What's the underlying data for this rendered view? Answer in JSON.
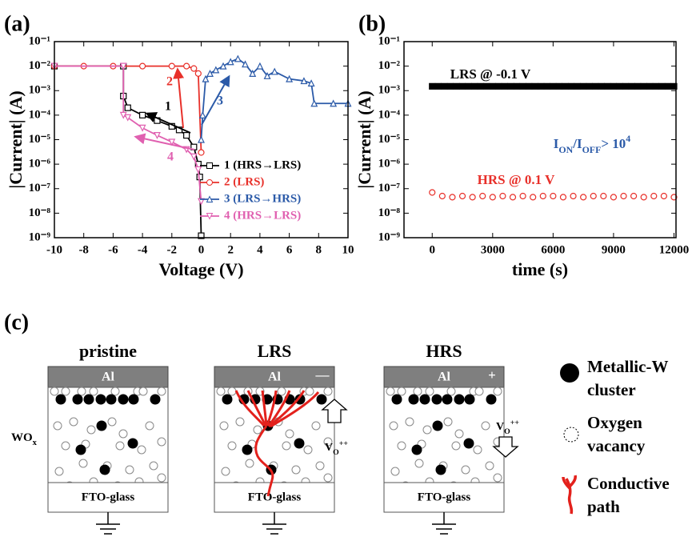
{
  "chart_data": [
    {
      "type": "line",
      "label": "(a)",
      "xlabel": "Voltage (V)",
      "ylabel": "|Current| (A)",
      "xlim": [
        -10,
        10
      ],
      "xticks": [
        -10,
        -8,
        -6,
        -4,
        -2,
        0,
        2,
        4,
        6,
        8,
        10
      ],
      "ylim": [
        1e-09,
        0.1
      ],
      "yscale": "log",
      "yticks": [
        {
          "value": 0.1,
          "label": "10⁻¹"
        },
        {
          "value": 0.01,
          "label": "10⁻²"
        },
        {
          "value": 0.001,
          "label": "10⁻³"
        },
        {
          "value": 0.0001,
          "label": "10⁻⁴"
        },
        {
          "value": 1e-05,
          "label": "10⁻⁵"
        },
        {
          "value": 1e-06,
          "label": "10⁻⁶"
        },
        {
          "value": 1e-07,
          "label": "10⁻⁷"
        },
        {
          "value": 1e-08,
          "label": "10⁻⁸"
        },
        {
          "value": 1e-09,
          "label": "10⁻⁹"
        }
      ],
      "legend": "lower right",
      "series": [
        {
          "name": "1 (HRS→LRS)",
          "color": "#000000",
          "marker": "square",
          "x": [
            0,
            -0.1,
            -0.2,
            -0.5,
            -1,
            -1.5,
            -2,
            -3,
            -4,
            -5,
            -5.3,
            -5.3,
            -10
          ],
          "values": [
            1.2e-09,
            3e-07,
            1e-06,
            5e-06,
            1.5e-05,
            2.5e-05,
            3.5e-05,
            6e-05,
            0.0001,
            0.0002,
            0.0006,
            0.01,
            0.01
          ]
        },
        {
          "name": "2 (LRS)",
          "color": "#e8302a",
          "marker": "circle",
          "x": [
            -10,
            -8,
            -6,
            -4,
            -2,
            -1,
            -0.5,
            -0.2,
            0
          ],
          "values": [
            0.01,
            0.01,
            0.01,
            0.01,
            0.01,
            0.01,
            0.008,
            0.005,
            3e-06
          ]
        },
        {
          "name": "3 (LRS→HRS)",
          "color": "#2b5aa8",
          "marker": "triangle-up",
          "x": [
            0,
            0.1,
            0.3,
            0.6,
            1,
            1.5,
            2,
            2.5,
            3,
            3.5,
            4,
            4.5,
            5,
            6,
            7,
            7.5,
            7.7,
            9,
            10
          ],
          "values": [
            1e-05,
            0.0001,
            0.003,
            0.005,
            0.007,
            0.01,
            0.015,
            0.02,
            0.012,
            0.005,
            0.01,
            0.004,
            0.006,
            0.003,
            0.0025,
            0.002,
            0.0003,
            0.0003,
            0.0003
          ]
        },
        {
          "name": "4 (HRS→LRS)",
          "color": "#e060b0",
          "marker": "triangle-down",
          "x": [
            0,
            -0.2,
            -0.5,
            -1,
            -2,
            -3,
            -4,
            -5,
            -5.3,
            -5.3,
            -10
          ],
          "values": [
            3e-08,
            6e-07,
            2e-06,
            4e-06,
            8e-06,
            1.5e-05,
            3e-05,
            8e-05,
            0.0001,
            0.01,
            0.01
          ]
        }
      ],
      "annotations": [
        {
          "text": "1",
          "color": "#000000"
        },
        {
          "text": "2",
          "color": "#e8302a"
        },
        {
          "text": "3",
          "color": "#2b5aa8"
        },
        {
          "text": "4",
          "color": "#e060b0"
        }
      ]
    },
    {
      "type": "scatter",
      "label": "(b)",
      "xlabel": "time (s)",
      "ylabel": "|Current| (A)",
      "xlim": [
        -1400,
        12100
      ],
      "xticks": [
        0,
        3000,
        6000,
        9000,
        12000
      ],
      "ylim": [
        1e-09,
        0.1
      ],
      "yscale": "log",
      "yticks": [
        {
          "value": 0.1,
          "label": "10⁻¹"
        },
        {
          "value": 0.01,
          "label": "10⁻²"
        },
        {
          "value": 0.001,
          "label": "10⁻³"
        },
        {
          "value": 0.0001,
          "label": "10⁻⁴"
        },
        {
          "value": 1e-05,
          "label": "10⁻⁵"
        },
        {
          "value": 1e-06,
          "label": "10⁻⁶"
        },
        {
          "value": 1e-07,
          "label": "10⁻⁷"
        },
        {
          "value": 1e-08,
          "label": "10⁻⁸"
        },
        {
          "value": 1e-09,
          "label": "10⁻⁹"
        }
      ],
      "series": [
        {
          "color": "#000000",
          "marker": "square-filled",
          "x": [
            0,
            300,
            600,
            900,
            1200,
            1500,
            1800,
            2100,
            2400,
            2700,
            3000,
            3300,
            3600,
            3900,
            4200,
            4500,
            4800,
            5100,
            5400,
            5700,
            6000,
            6300,
            6600,
            6900,
            7200,
            7500,
            7800,
            8100,
            8400,
            8700,
            9000,
            9300,
            9600,
            9900,
            10200,
            10500,
            10800,
            11100,
            11400,
            11700,
            12000
          ],
          "values": [
            0.0015,
            0.0015,
            0.0015,
            0.0015,
            0.0015,
            0.0015,
            0.0015,
            0.0015,
            0.0015,
            0.0015,
            0.0015,
            0.0015,
            0.0015,
            0.0015,
            0.0015,
            0.0015,
            0.0015,
            0.0015,
            0.0015,
            0.0015,
            0.0015,
            0.0015,
            0.0015,
            0.0015,
            0.0015,
            0.0015,
            0.0015,
            0.0015,
            0.0015,
            0.0015,
            0.0015,
            0.0015,
            0.0015,
            0.0015,
            0.0015,
            0.0015,
            0.0015,
            0.0015,
            0.0015,
            0.0015,
            0.0015
          ]
        },
        {
          "color": "#e8302a",
          "marker": "circle",
          "x": [
            0,
            500,
            1000,
            1500,
            2000,
            2500,
            3000,
            3500,
            4000,
            4500,
            5000,
            5500,
            6000,
            6500,
            7000,
            7500,
            8000,
            8500,
            9000,
            9500,
            10000,
            10500,
            11000,
            11500,
            12000
          ],
          "values": [
            7e-08,
            5e-08,
            4.5e-08,
            5e-08,
            4.5e-08,
            5e-08,
            4.5e-08,
            5e-08,
            4.5e-08,
            5e-08,
            4.5e-08,
            5e-08,
            5e-08,
            4.5e-08,
            5e-08,
            4.5e-08,
            5e-08,
            5e-08,
            4.5e-08,
            5e-08,
            5e-08,
            4.5e-08,
            5e-08,
            5e-08,
            4.5e-08
          ]
        }
      ],
      "annotations": [
        {
          "text": "LRS @ -0.1 V",
          "color": "#000000"
        },
        {
          "text": "HRS @ 0.1 V",
          "color": "#e8302a"
        },
        {
          "parts": [
            {
              "t": "I"
            },
            {
              "t": "ON",
              "sub": true
            },
            {
              "t": "/I"
            },
            {
              "t": "OFF",
              "sub": true
            },
            {
              "t": "> 10"
            },
            {
              "t": "4",
              "sup": true
            }
          ],
          "color": "#2b5aa8"
        }
      ]
    }
  ],
  "diagram": {
    "label": "(c)",
    "panels": [
      {
        "title": "pristine",
        "top": "Al",
        "bottom": "FTO-glass"
      },
      {
        "title": "LRS",
        "top": "Al",
        "sign": "—",
        "bottom": "FTO-glass"
      },
      {
        "title": "HRS",
        "top": "Al",
        "sign": "+",
        "bottom": "FTO-glass"
      }
    ],
    "oxide": {
      "parts": [
        {
          "t": "WO"
        },
        {
          "t": "x",
          "sub": true
        }
      ]
    },
    "ion_labels": [
      {
        "parts": [
          {
            "t": "V"
          },
          {
            "t": "O",
            "sub": true
          },
          {
            "t": "++",
            "sup": true
          }
        ]
      },
      {
        "parts": [
          {
            "t": "V"
          },
          {
            "t": "O",
            "sub": true
          },
          {
            "t": "++",
            "sup": true
          }
        ]
      }
    ],
    "legend": [
      {
        "lines": [
          "Metallic-W",
          "cluster"
        ]
      },
      {
        "lines": [
          "Oxygen",
          "vacancy"
        ]
      },
      {
        "lines": [
          "Conductive",
          "path"
        ]
      }
    ]
  }
}
